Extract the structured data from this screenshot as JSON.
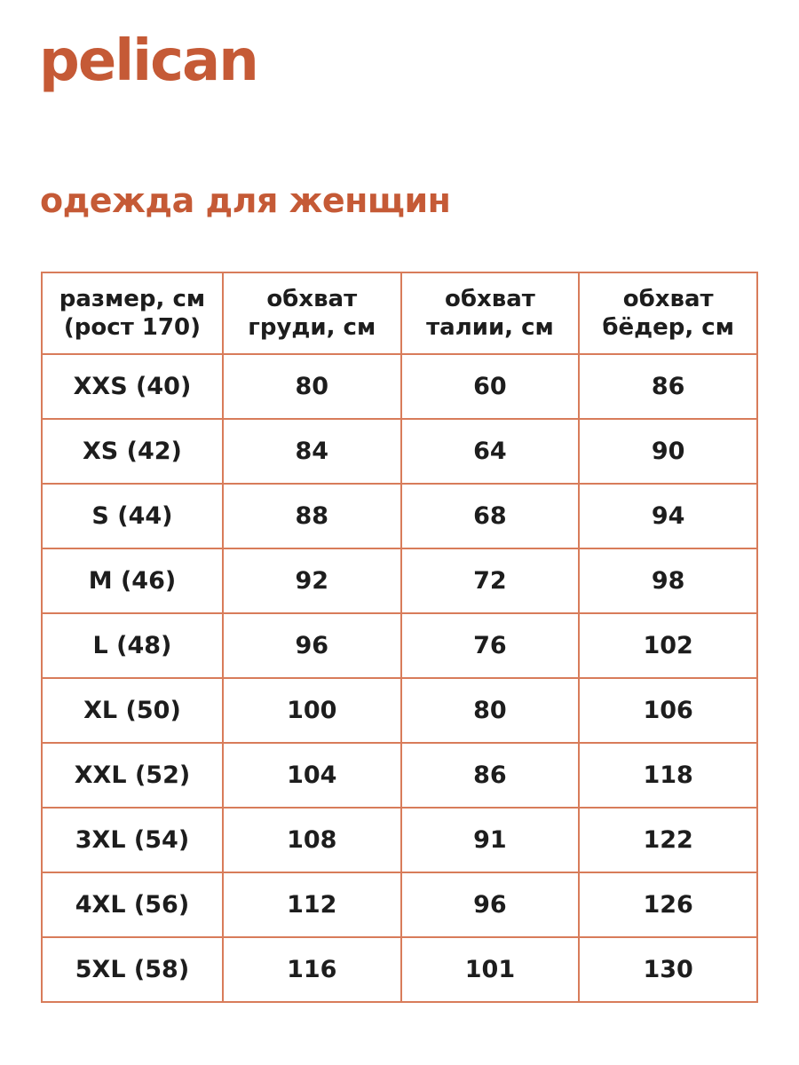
{
  "brand": {
    "logo_text": "pelican"
  },
  "page_title": "одежда для женщин",
  "colors": {
    "accent": "#C55A36",
    "table_border": "#D87C5A",
    "table_text": "#1D1D1D",
    "background": "#FFFFFF"
  },
  "size_table": {
    "columns": [
      {
        "line1": "размер, см",
        "line2": "(рост 170)"
      },
      {
        "line1": "обхват",
        "line2": "груди, см"
      },
      {
        "line1": "обхват",
        "line2": "талии, см"
      },
      {
        "line1": "обхват",
        "line2": "бёдер, см"
      }
    ],
    "rows": [
      {
        "size": "XXS (40)",
        "chest": "80",
        "waist": "60",
        "hips": "86"
      },
      {
        "size": "XS (42)",
        "chest": "84",
        "waist": "64",
        "hips": "90"
      },
      {
        "size": "S (44)",
        "chest": "88",
        "waist": "68",
        "hips": "94"
      },
      {
        "size": "M (46)",
        "chest": "92",
        "waist": "72",
        "hips": "98"
      },
      {
        "size": "L (48)",
        "chest": "96",
        "waist": "76",
        "hips": "102"
      },
      {
        "size": "XL (50)",
        "chest": "100",
        "waist": "80",
        "hips": "106"
      },
      {
        "size": "XXL (52)",
        "chest": "104",
        "waist": "86",
        "hips": "118"
      },
      {
        "size": "3XL (54)",
        "chest": "108",
        "waist": "91",
        "hips": "122"
      },
      {
        "size": "4XL (56)",
        "chest": "112",
        "waist": "96",
        "hips": "126"
      },
      {
        "size": "5XL (58)",
        "chest": "116",
        "waist": "101",
        "hips": "130"
      }
    ]
  }
}
